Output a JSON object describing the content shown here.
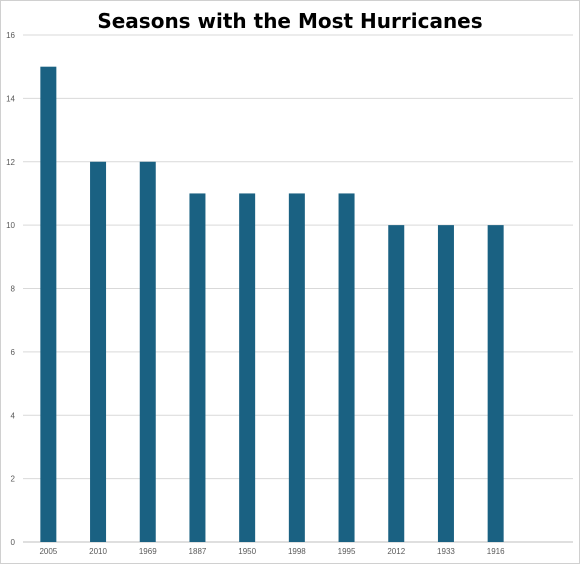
{
  "chart_data": {
    "type": "bar",
    "title": "Seasons with the Most Hurricanes",
    "xlabel": "",
    "ylabel": "",
    "categories": [
      "2005",
      "2010",
      "1969",
      "1887",
      "1950",
      "1998",
      "1995",
      "2012",
      "1933",
      "1916"
    ],
    "values": [
      15,
      12,
      12,
      11,
      11,
      11,
      11,
      10,
      10,
      10
    ],
    "ylim": [
      0,
      16
    ],
    "yticks": [
      0,
      2,
      4,
      6,
      8,
      10,
      12,
      14,
      16
    ],
    "grid": true,
    "legend": "none",
    "colors": {
      "bar": "#1a6182",
      "grid": "#d9d9d9",
      "axis": "#bfbfbf"
    }
  }
}
